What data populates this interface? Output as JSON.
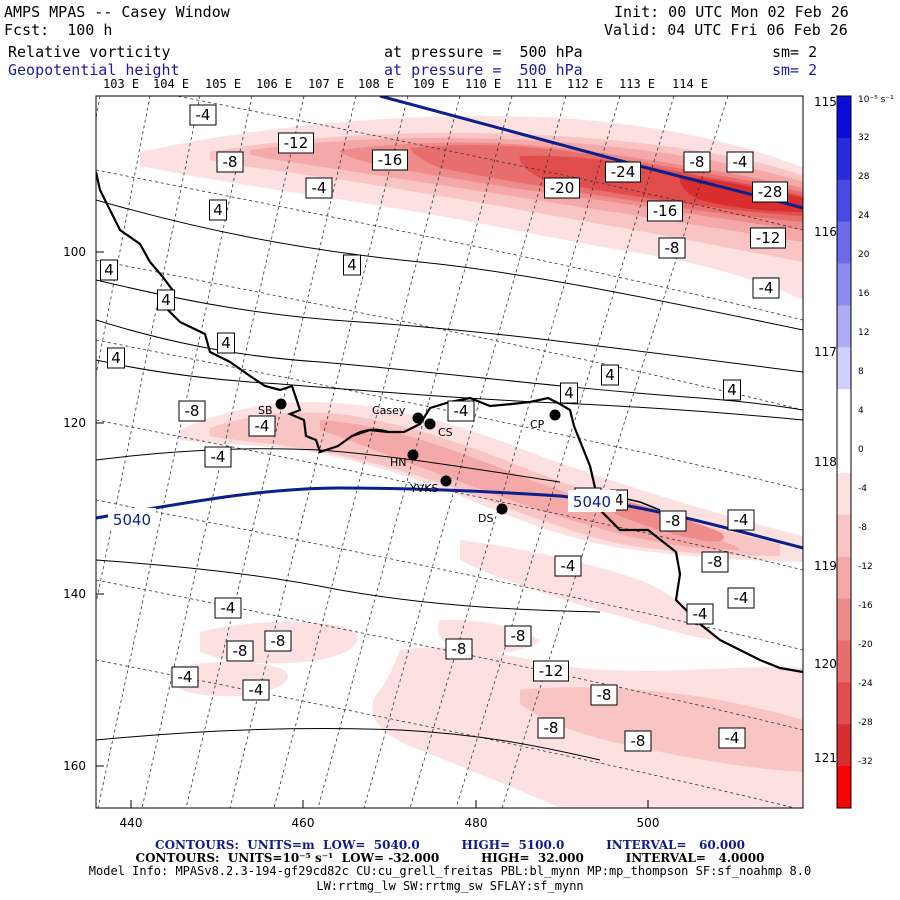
{
  "header": {
    "title": "AMPS MPAS -- Casey Window",
    "fcst": "Fcst:  100 h",
    "init": "Init: 00 UTC Mon 02 Feb 26",
    "valid": "Valid: 04 UTC Fri 06 Feb 26",
    "field1_name": "Relative vorticity",
    "field1_level": "at pressure =  500 hPa",
    "field1_sm": "sm= 2",
    "field2_name": "Geopotential height",
    "field2_level": "at pressure =  500 hPa",
    "field2_sm": "sm= 2"
  },
  "top_lon_labels": [
    "103 E",
    "104 E",
    "105 E",
    "106 E",
    "107 E",
    "108 E",
    "109 E",
    "110 E",
    "111 E",
    "112 E",
    "113 E",
    "114 E"
  ],
  "right_lon_labels": [
    "115 E",
    "116 E",
    "117 E",
    "118 E",
    "119 E",
    "120 E",
    "121 E"
  ],
  "x_ticks": [
    "440",
    "460",
    "480",
    "500"
  ],
  "y_ticks": [
    "100",
    "120",
    "140",
    "160"
  ],
  "stations": [
    {
      "name": "SB"
    },
    {
      "name": "Casey"
    },
    {
      "name": "CS"
    },
    {
      "name": "CP"
    },
    {
      "name": "HN"
    },
    {
      "name": "YVKS"
    },
    {
      "name": "DS"
    }
  ],
  "vort_labels": [
    "-4",
    "-12",
    "-8",
    "-16",
    "-20",
    "-24",
    "-8",
    "-4",
    "-28",
    "-16",
    "-12",
    "-8",
    "-4",
    "4",
    "4",
    "4",
    "4",
    "4",
    "4",
    "4",
    "4",
    "4",
    "-4",
    "-8",
    "-4",
    "-4",
    "4",
    "-4",
    "-8",
    "-8",
    "-4",
    "-4",
    "-4",
    "-4",
    "-8",
    "-8",
    "-4",
    "-4",
    "-8",
    "-8",
    "-12",
    "-8",
    "-8",
    "-8",
    "-4",
    "-4",
    "-8"
  ],
  "height_labels": [
    "5040",
    "5040"
  ],
  "colorbar": {
    "unit": "10⁻⁵ s⁻¹",
    "labels": [
      "32",
      "28",
      "24",
      "20",
      "16",
      "12",
      "8",
      "4",
      "0",
      "-4",
      "-8",
      "-12",
      "-16",
      "-20",
      "-24",
      "-28",
      "-32"
    ],
    "colors": [
      "#0b0bd9",
      "#2a2adf",
      "#4a4ae6",
      "#6b6bec",
      "#8d8df1",
      "#adadf5",
      "#cfcff9",
      "#ffffff",
      "#ffffff",
      "#fde0e0",
      "#f9c4c4",
      "#f4a8a8",
      "#ee8b8b",
      "#e86d6d",
      "#e14d4d",
      "#d92e2e",
      "#ff0000"
    ]
  },
  "footer": {
    "height_contours": "CONTOURS:  UNITS=m  LOW=  5040.0          HIGH=  5100.0          INTERVAL=   60.000",
    "vort_contours": "CONTOURS:  UNITS=10⁻⁵ s⁻¹  LOW= -32.000          HIGH=  32.000          INTERVAL=   4.0000",
    "model_info": "Model Info: MPASv8.2.3-194-gf29cd82c CU:cu_grell_freitas PBL:bl_mynn MP:mp_thompson SF:sf_noahmp 8.0",
    "model_info2": "LW:rrtmg_lw SW:rrtmg_sw SFLAY:sf_mynn"
  },
  "colors": {
    "height_contour": "#0b1f8f",
    "coast": "#000000"
  }
}
